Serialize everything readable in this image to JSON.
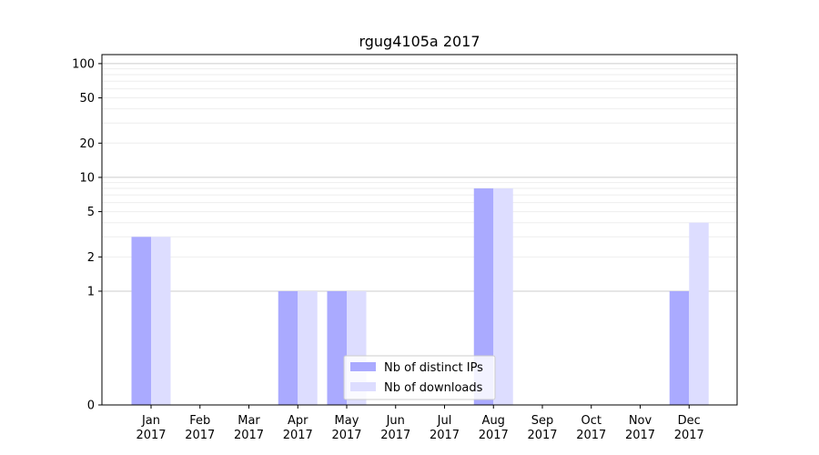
{
  "chart_data": {
    "type": "bar",
    "title": "rgug4105a 2017",
    "categories": [
      "Jan\n2017",
      "Feb\n2017",
      "Mar\n2017",
      "Apr\n2017",
      "May\n2017",
      "Jun\n2017",
      "Jul\n2017",
      "Aug\n2017",
      "Sep\n2017",
      "Oct\n2017",
      "Nov\n2017",
      "Dec\n2017"
    ],
    "series": [
      {
        "name": "Nb of distinct IPs",
        "color": "#aaaaff",
        "values": [
          3,
          0,
          0,
          1,
          1,
          0,
          0,
          8,
          0,
          0,
          0,
          1
        ]
      },
      {
        "name": "Nb of downloads",
        "color": "#ddddff",
        "values": [
          3,
          0,
          0,
          1,
          1,
          0,
          0,
          8,
          0,
          0,
          0,
          4
        ]
      }
    ],
    "yscale": "symlog",
    "ylim": [
      0,
      120
    ],
    "yticks": [
      0,
      1,
      2,
      5,
      10,
      20,
      50,
      100
    ],
    "grid": true,
    "legend_position": "lower-center"
  }
}
